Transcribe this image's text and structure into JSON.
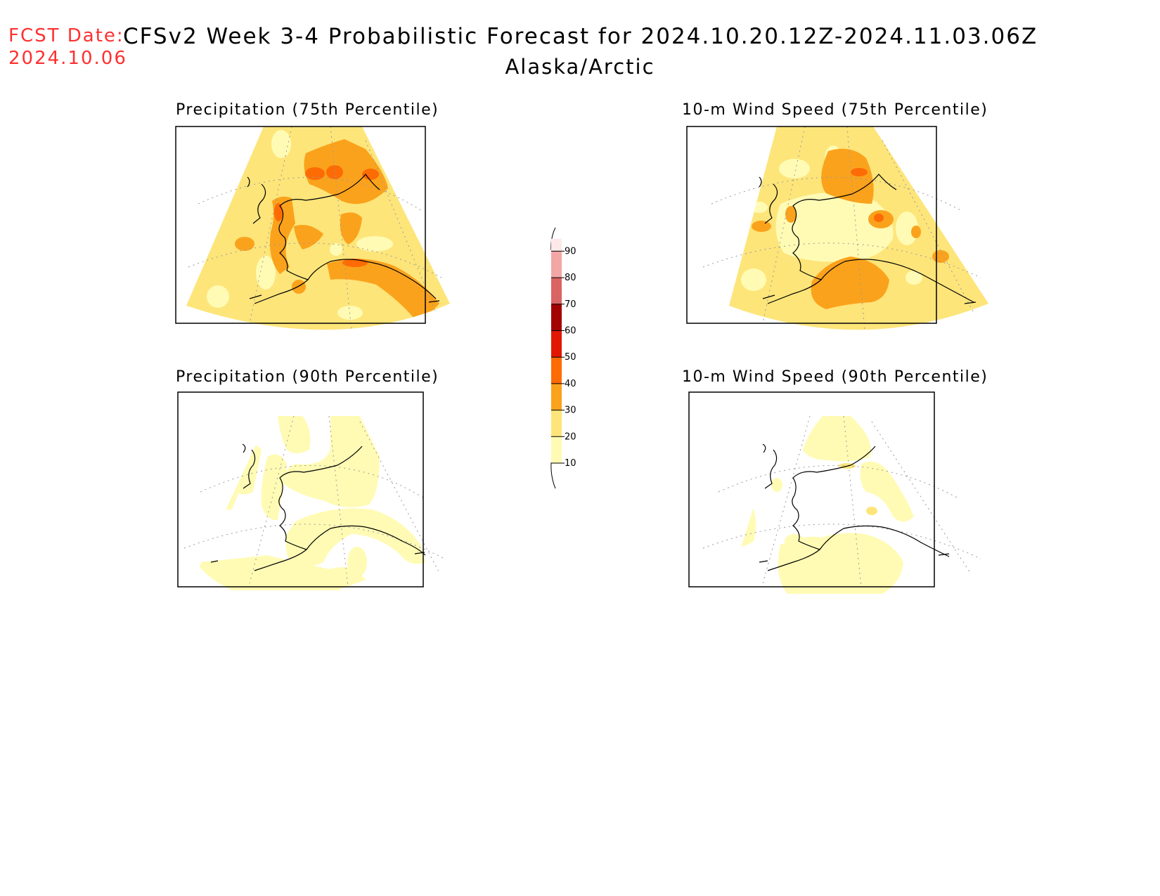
{
  "header": {
    "fcst_label": "FCST Date:",
    "fcst_date": "2024.10.06",
    "title": "CFSv2 Week 3-4 Probabilistic Forecast for 2024.10.20.12Z-2024.11.03.06Z",
    "region": "Alaska/Arctic"
  },
  "panels": [
    {
      "id": "precip75",
      "title": "Precipitation (75th Percentile)"
    },
    {
      "id": "wind75",
      "title": "10-m Wind Speed (75th Percentile)"
    },
    {
      "id": "precip90",
      "title": "Precipitation (90th Percentile)"
    },
    {
      "id": "wind90",
      "title": "10-m Wind Speed (90th Percentile)"
    }
  ],
  "colorbar": {
    "levels": [
      "10",
      "20",
      "30",
      "40",
      "50",
      "60",
      "70",
      "80",
      "90"
    ],
    "colors": [
      "#fffbb4",
      "#fde57a",
      "#fba21c",
      "#fd6b05",
      "#e11704",
      "#a20202",
      "#da6363",
      "#f2a6a6",
      "#fde9e9"
    ]
  },
  "colors": {
    "c10": "#fffbb4",
    "c20": "#fde57a",
    "c30": "#fba21c",
    "c40": "#fd6b05",
    "date_red": "#ff3030"
  }
}
